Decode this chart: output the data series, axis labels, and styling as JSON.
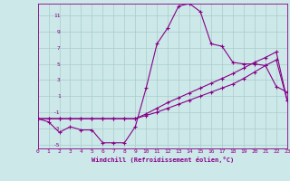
{
  "xlabel": "Windchill (Refroidissement éolien,°C)",
  "bg_color": "#cce8e8",
  "line_color": "#880088",
  "grid_color": "#aacccc",
  "xlim": [
    0,
    23
  ],
  "ylim": [
    -5.5,
    12.5
  ],
  "yticks": [
    -5,
    -3,
    -1,
    1,
    3,
    5,
    7,
    9,
    11
  ],
  "xticks": [
    0,
    1,
    2,
    3,
    4,
    5,
    6,
    7,
    8,
    9,
    10,
    11,
    12,
    13,
    14,
    15,
    16,
    17,
    18,
    19,
    20,
    21,
    22,
    23
  ],
  "line1_x": [
    0,
    1,
    2,
    3,
    4,
    5,
    6,
    7,
    8,
    9,
    10,
    11,
    12,
    13,
    14,
    15,
    16,
    17,
    18,
    19,
    20,
    21,
    22,
    23
  ],
  "line1_y": [
    -1.8,
    -2.2,
    -3.5,
    -2.8,
    -3.2,
    -3.2,
    -4.8,
    -4.8,
    -4.8,
    -2.8,
    2.0,
    7.5,
    9.5,
    12.2,
    12.5,
    11.5,
    7.5,
    7.2,
    5.2,
    5.0,
    5.0,
    4.8,
    2.2,
    1.5
  ],
  "line2_x": [
    0,
    1,
    2,
    3,
    4,
    5,
    6,
    7,
    8,
    9,
    10,
    11,
    12,
    13,
    14,
    15,
    16,
    17,
    18,
    19,
    20,
    21,
    22,
    23
  ],
  "line2_y": [
    -1.8,
    -1.8,
    -1.8,
    -1.8,
    -1.8,
    -1.8,
    -1.8,
    -1.8,
    -1.8,
    -1.8,
    -1.4,
    -1.0,
    -0.5,
    0.0,
    0.5,
    1.0,
    1.5,
    2.0,
    2.5,
    3.2,
    4.0,
    4.8,
    5.5,
    0.5
  ],
  "line3_x": [
    0,
    1,
    2,
    3,
    4,
    5,
    6,
    7,
    8,
    9,
    10,
    11,
    12,
    13,
    14,
    15,
    16,
    17,
    18,
    19,
    20,
    21,
    22,
    23
  ],
  "line3_y": [
    -1.8,
    -1.8,
    -1.8,
    -1.8,
    -1.8,
    -1.8,
    -1.8,
    -1.8,
    -1.8,
    -1.8,
    -1.2,
    -0.5,
    0.2,
    0.8,
    1.4,
    2.0,
    2.6,
    3.2,
    3.8,
    4.5,
    5.2,
    5.8,
    6.5,
    0.5
  ],
  "marker": "+",
  "markersize": 3,
  "linewidth": 0.8
}
